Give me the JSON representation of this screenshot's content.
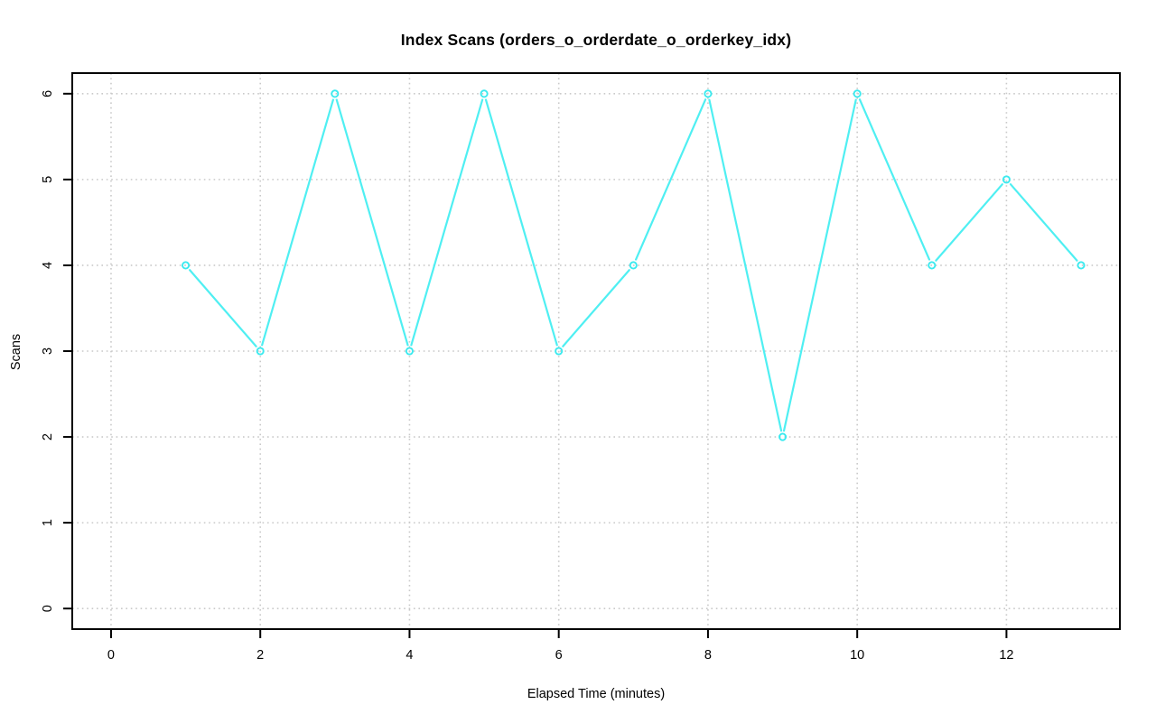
{
  "title": "Index Scans (orders_o_orderdate_o_orderkey_idx)",
  "chart_data": {
    "type": "line",
    "title": "Index Scans (orders_o_orderdate_o_orderkey_idx)",
    "xlabel": "Elapsed Time (minutes)",
    "ylabel": "Scans",
    "x": [
      1,
      2,
      3,
      4,
      5,
      6,
      7,
      8,
      9,
      10,
      11,
      12,
      13
    ],
    "y": [
      4,
      3,
      6,
      3,
      6,
      3,
      4,
      6,
      2,
      6,
      4,
      5,
      4
    ],
    "x_ticks": [
      0,
      2,
      4,
      6,
      8,
      10,
      12
    ],
    "y_ticks": [
      0,
      1,
      2,
      3,
      4,
      5,
      6
    ],
    "xlim": [
      -0.52,
      13.52
    ],
    "ylim": [
      -0.24,
      6.24
    ],
    "grid": true,
    "legend": "none",
    "marker": "open-circle",
    "line_color": "#4FEFF2",
    "marker_color": "#3BEAEF",
    "grid_color": "#C9C9C9",
    "axis_color": "#000000",
    "background_color": "#FFFFFF"
  }
}
